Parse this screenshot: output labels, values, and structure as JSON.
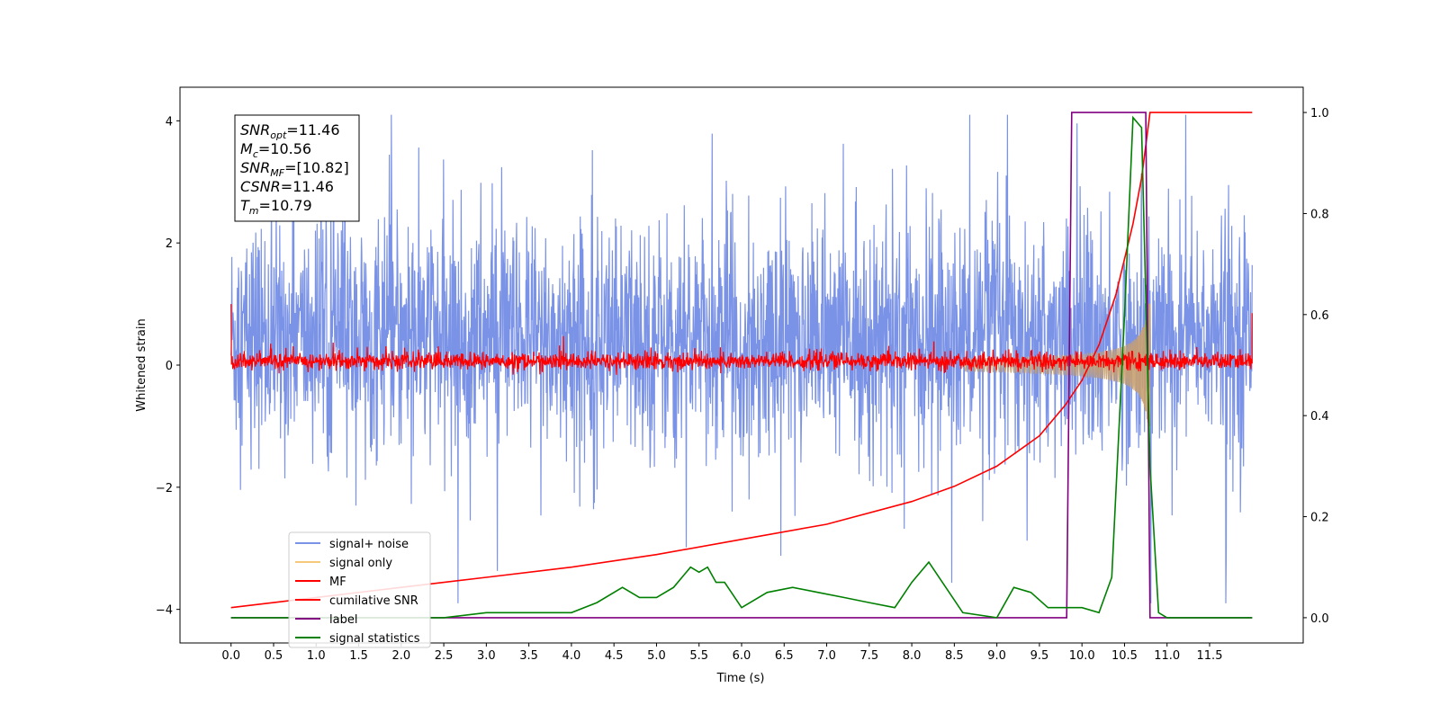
{
  "chart_data": {
    "type": "line",
    "title": "",
    "xlabel": "Time (s)",
    "ylabel": "Whitened strain",
    "xlim": [
      -0.6,
      12.6
    ],
    "ylim": [
      -4.55,
      4.55
    ],
    "y2lim": [
      -0.05,
      1.05
    ],
    "x_ticks": [
      "0.0",
      "0.5",
      "1.0",
      "1.5",
      "2.0",
      "2.5",
      "3.0",
      "3.5",
      "4.0",
      "4.5",
      "5.0",
      "5.5",
      "6.0",
      "6.5",
      "7.0",
      "7.5",
      "8.0",
      "8.5",
      "9.0",
      "9.5",
      "10.0",
      "10.5",
      "11.0",
      "11.5"
    ],
    "y_ticks": [
      "4",
      "2",
      "0",
      "−2",
      "−4"
    ],
    "y2_ticks": [
      "1.0",
      "0.8",
      "0.6",
      "0.4",
      "0.2",
      "0.0"
    ],
    "grid": false,
    "annotation": {
      "lines": [
        {
          "base": "SNR",
          "sub": "opt",
          "value": "=11.46"
        },
        {
          "base": "M",
          "sub": "c",
          "value": "=10.56"
        },
        {
          "base": "SNR",
          "sub": "MF",
          "value": "=[10.82]"
        },
        {
          "base": "CSNR",
          "sub": "",
          "value": "=11.46"
        },
        {
          "base": "T",
          "sub": "m",
          "value": "=10.79"
        }
      ]
    },
    "legend": {
      "placement": "lower-left",
      "entries": [
        {
          "label": "signal+ noise",
          "color": "#7b93e6"
        },
        {
          "label": "signal only",
          "color": "#f5c87a"
        },
        {
          "label": "MF",
          "color": "#ff0000"
        },
        {
          "label": "cumilative SNR",
          "color": "#ff0000"
        },
        {
          "label": "label",
          "color": "#800080"
        },
        {
          "label": "signal statistics",
          "color": "#008000"
        }
      ]
    },
    "series": [
      {
        "name": "signal+ noise",
        "axis": "left",
        "color": "#7b93e6",
        "x_range": [
          0,
          12
        ],
        "envelope": [
          -3.0,
          4.1
        ],
        "note": "noisy band roughly between -3 and 4"
      },
      {
        "name": "signal only",
        "axis": "left",
        "color": "#c8a070",
        "x_range": [
          8.6,
          10.8
        ],
        "envelope_end": 1.0
      },
      {
        "name": "MF",
        "axis": "left",
        "color": "#ff0000",
        "x_range": [
          0,
          12
        ],
        "envelope": [
          -0.1,
          0.3
        ]
      },
      {
        "name": "cumilative SNR",
        "axis": "right",
        "color": "#ff0000",
        "x": [
          0.0,
          0.5,
          1.0,
          2.0,
          3.0,
          4.0,
          5.0,
          6.0,
          7.0,
          8.0,
          8.5,
          9.0,
          9.5,
          9.8,
          10.0,
          10.2,
          10.4,
          10.6,
          10.7,
          10.8,
          11.0,
          12.0
        ],
        "values": [
          0.02,
          0.03,
          0.04,
          0.06,
          0.08,
          0.1,
          0.125,
          0.155,
          0.185,
          0.23,
          0.26,
          0.3,
          0.36,
          0.42,
          0.47,
          0.54,
          0.64,
          0.78,
          0.87,
          1.0,
          1.0,
          1.0
        ]
      },
      {
        "name": "label",
        "axis": "right",
        "color": "#800080",
        "x": [
          0.0,
          9.82,
          9.88,
          10.75,
          10.8,
          12.0
        ],
        "values": [
          0.0,
          0.0,
          1.0,
          1.0,
          0.0,
          0.0
        ]
      },
      {
        "name": "signal statistics",
        "axis": "right",
        "color": "#008000",
        "x": [
          0.0,
          0.5,
          1.0,
          1.5,
          2.0,
          2.5,
          3.0,
          3.5,
          4.0,
          4.3,
          4.6,
          4.8,
          5.0,
          5.2,
          5.3,
          5.4,
          5.5,
          5.6,
          5.7,
          5.8,
          6.0,
          6.3,
          6.6,
          6.9,
          7.2,
          7.5,
          7.8,
          8.0,
          8.2,
          8.4,
          8.6,
          9.0,
          9.2,
          9.4,
          9.6,
          9.8,
          10.0,
          10.2,
          10.35,
          10.5,
          10.6,
          10.7,
          10.8,
          10.9,
          11.0,
          11.5,
          12.0
        ],
        "values": [
          0.0,
          0.0,
          0.0,
          0.0,
          0.0,
          0.0,
          0.01,
          0.01,
          0.01,
          0.03,
          0.06,
          0.04,
          0.04,
          0.06,
          0.08,
          0.1,
          0.09,
          0.1,
          0.07,
          0.07,
          0.02,
          0.05,
          0.06,
          0.05,
          0.04,
          0.03,
          0.02,
          0.07,
          0.11,
          0.06,
          0.01,
          0.0,
          0.06,
          0.05,
          0.02,
          0.02,
          0.02,
          0.01,
          0.08,
          0.6,
          0.99,
          0.97,
          0.3,
          0.01,
          0.0,
          0.0,
          0.0
        ]
      }
    ]
  }
}
